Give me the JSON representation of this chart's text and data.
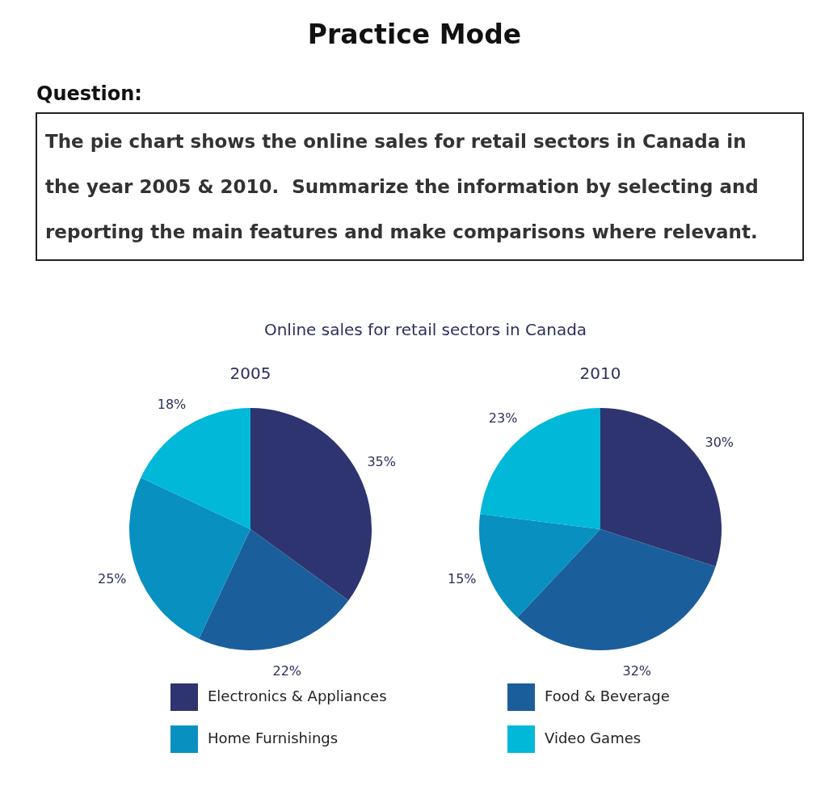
{
  "chart_data": [
    {
      "type": "other",
      "title": "Practice Mode",
      "subtitle": "Question:",
      "annotations": [
        "The pie chart shows the online sales for retail sectors in Canada in the year 2005 & 2010.  Summarize the information by selecting and reporting the main features and make comparisons where relevant."
      ]
    },
    {
      "type": "pie",
      "title": "Online sales for retail sectors in Canada",
      "subtitle": "2005",
      "categories": [
        "Electronics & Appliances",
        "Food & Beverage",
        "Home Furnishings",
        "Video Games"
      ],
      "values": [
        35,
        22,
        25,
        18
      ],
      "colors": [
        "#2e3470",
        "#1a5e9c",
        "#0890c0",
        "#00b8d8"
      ],
      "value_labels": [
        "35%",
        "22%",
        "25%",
        "18%"
      ],
      "legend": "bottom"
    },
    {
      "type": "pie",
      "subtitle": "2010",
      "categories": [
        null,
        null,
        null,
        null
      ],
      "values": [
        30,
        32,
        15,
        23
      ],
      "colors": [
        "#2e3470",
        "#1a5e9c",
        "#0890c0",
        "#00b8d8"
      ],
      "value_labels": [
        "30%",
        "32%",
        "15%",
        "23%"
      ]
    }
  ]
}
